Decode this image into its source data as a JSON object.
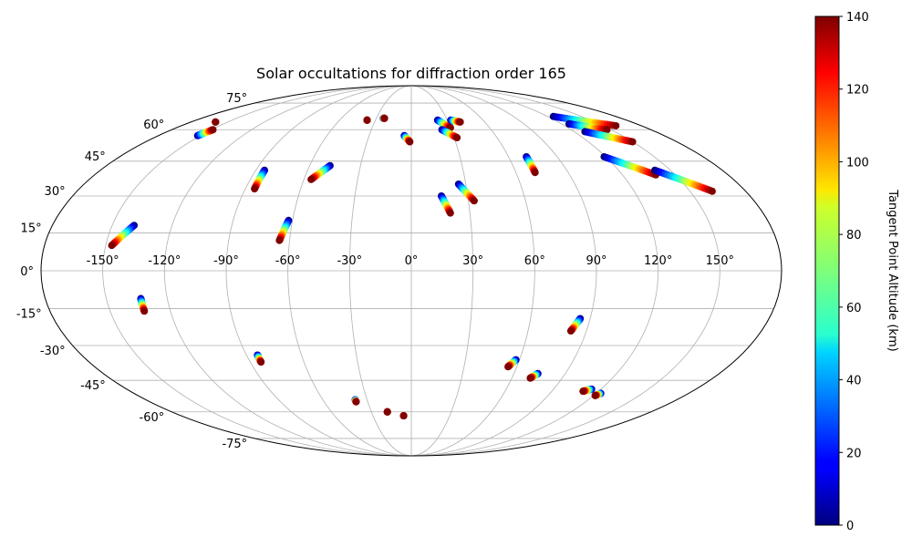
{
  "chart_data": {
    "type": "scatter",
    "projection": "mollweide",
    "title": "Solar occultations for diffraction order 165",
    "longitude_ticks": [
      -150,
      -120,
      -90,
      -60,
      -30,
      0,
      30,
      60,
      90,
      120,
      150
    ],
    "latitude_ticks": [
      -75,
      -60,
      -45,
      -30,
      -15,
      0,
      15,
      30,
      45,
      60,
      75
    ],
    "longitude_tick_labels": [
      "-150°",
      "-120°",
      "-90°",
      "-60°",
      "-30°",
      "0°",
      "30°",
      "60°",
      "90°",
      "120°",
      "150°"
    ],
    "latitude_tick_labels": [
      "-75°",
      "-60°",
      "-45°",
      "-30°",
      "-15°",
      "0°",
      "15°",
      "30°",
      "45°",
      "60°",
      "75°"
    ],
    "grid": true,
    "colormap": "jet",
    "colorbar": {
      "label": "Tangent Point Altitude (km)",
      "range": [
        0,
        140
      ],
      "ticks": [
        0,
        20,
        40,
        60,
        80,
        100,
        120,
        140
      ],
      "tick_labels": [
        "0",
        "20",
        "40",
        "60",
        "80",
        "100",
        "120",
        "140"
      ],
      "placement": "right"
    },
    "tracks": [
      {
        "start": [
          -139,
          18
        ],
        "end": [
          -147,
          10
        ]
      },
      {
        "start": [
          -133,
          -11
        ],
        "end": [
          -133,
          -16
        ]
      },
      {
        "start": [
          -85,
          41
        ],
        "end": [
          -85,
          33
        ]
      },
      {
        "start": [
          -84,
          -34
        ],
        "end": [
          -84,
          -37
        ]
      },
      {
        "start": [
          -62,
          20
        ],
        "end": [
          -65,
          12
        ]
      },
      {
        "start": [
          -48,
          43
        ],
        "end": [
          -56,
          37
        ]
      },
      {
        "start": [
          -37,
          65
        ],
        "end": [
          -37,
          65
        ]
      },
      {
        "start": [
          -38,
          -54
        ],
        "end": [
          -38,
          -55
        ]
      },
      {
        "start": [
          -24,
          66
        ],
        "end": [
          -23,
          66
        ]
      },
      {
        "start": [
          -5,
          57
        ],
        "end": [
          -1,
          54
        ]
      },
      {
        "start": [
          -18,
          -60
        ],
        "end": [
          -18,
          -60
        ]
      },
      {
        "start": [
          -6,
          -62
        ],
        "end": [
          -6,
          -62
        ]
      },
      {
        "start": [
          16,
          30
        ],
        "end": [
          20,
          23
        ]
      },
      {
        "start": [
          22,
          65
        ],
        "end": [
          30,
          61
        ]
      },
      {
        "start": [
          33,
          65
        ],
        "end": [
          40,
          64
        ]
      },
      {
        "start": [
          23,
          60
        ],
        "end": [
          32,
          56
        ]
      },
      {
        "start": [
          26,
          35
        ],
        "end": [
          33,
          28
        ]
      },
      {
        "start": [
          71,
          47
        ],
        "end": [
          71,
          40
        ]
      },
      {
        "start": [
          58,
          -36
        ],
        "end": [
          55,
          -39
        ]
      },
      {
        "start": [
          74,
          -42
        ],
        "end": [
          71,
          -44
        ]
      },
      {
        "start": [
          85,
          -19
        ],
        "end": [
          82,
          -24
        ]
      },
      {
        "start": [
          114,
          -49
        ],
        "end": [
          110,
          -50
        ]
      },
      {
        "start": [
          123,
          -51
        ],
        "end": [
          121,
          -52
        ]
      },
      {
        "start": [
          125,
          67
        ],
        "end": [
          160,
          62
        ]
      },
      {
        "start": [
          126,
          63
        ],
        "end": [
          147,
          60
        ]
      },
      {
        "start": [
          128,
          59
        ],
        "end": [
          150,
          54
        ]
      },
      {
        "start": [
          119,
          47
        ],
        "end": [
          139,
          39
        ]
      },
      {
        "start": [
          141,
          41
        ],
        "end": [
          162,
          32
        ]
      },
      {
        "start": [
          -152,
          57
        ],
        "end": [
          -149,
          60
        ]
      },
      {
        "start": [
          -160,
          64
        ],
        "end": [
          -160,
          64
        ]
      }
    ]
  }
}
